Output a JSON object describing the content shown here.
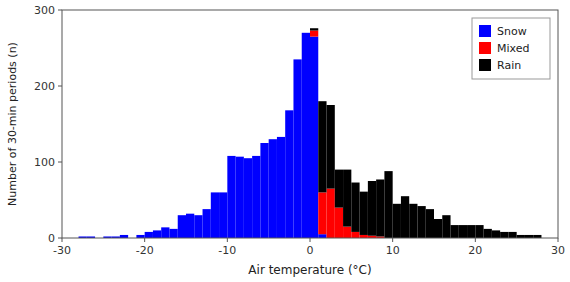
{
  "chart_data": {
    "type": "bar",
    "stacked": true,
    "xlabel": "Air temperature (°C)",
    "ylabel": "Number of 30-min periods (n)",
    "xlim": [
      -30,
      30
    ],
    "ylim": [
      0,
      300
    ],
    "xticks": [
      -30,
      -20,
      -10,
      0,
      10,
      20,
      30
    ],
    "yticks": [
      0,
      100,
      200,
      300
    ],
    "grid": false,
    "legend": "upper-right",
    "x": [
      -28,
      -27,
      -26,
      -25,
      -24,
      -23,
      -22,
      -21,
      -20,
      -19,
      -18,
      -17,
      -16,
      -15,
      -14,
      -13,
      -12,
      -11,
      -10,
      -9,
      -8,
      -7,
      -6,
      -5,
      -4,
      -3,
      -2,
      -1,
      0,
      1,
      2,
      3,
      4,
      5,
      6,
      7,
      8,
      9,
      10,
      11,
      12,
      13,
      14,
      15,
      16,
      17,
      18,
      19,
      20,
      21,
      22,
      23,
      24,
      25,
      26,
      27
    ],
    "series": [
      {
        "name": "Snow",
        "color": "#0000FF",
        "values": [
          2,
          2,
          0,
          2,
          2,
          4,
          0,
          4,
          8,
          10,
          14,
          12,
          30,
          32,
          30,
          38,
          60,
          60,
          108,
          107,
          105,
          108,
          125,
          130,
          133,
          168,
          235,
          270,
          265,
          5,
          0,
          0,
          0,
          0,
          0,
          0,
          0,
          0,
          0,
          0,
          0,
          0,
          0,
          0,
          0,
          0,
          0,
          0,
          0,
          0,
          0,
          0,
          0,
          0,
          0,
          0
        ]
      },
      {
        "name": "Mixed",
        "color": "#FF0000",
        "values": [
          0,
          0,
          0,
          0,
          0,
          0,
          0,
          0,
          0,
          0,
          0,
          0,
          0,
          0,
          0,
          0,
          0,
          0,
          0,
          0,
          0,
          0,
          0,
          0,
          0,
          0,
          0,
          0,
          8,
          55,
          65,
          40,
          15,
          8,
          4,
          3,
          2,
          0,
          0,
          0,
          0,
          0,
          0,
          0,
          0,
          0,
          0,
          0,
          0,
          0,
          0,
          0,
          0,
          0,
          0,
          0
        ]
      },
      {
        "name": "Rain",
        "color": "#000000",
        "values": [
          0,
          0,
          0,
          0,
          0,
          0,
          0,
          0,
          0,
          0,
          0,
          0,
          0,
          0,
          0,
          0,
          0,
          0,
          0,
          0,
          0,
          0,
          0,
          0,
          0,
          0,
          0,
          0,
          3,
          120,
          110,
          50,
          75,
          65,
          57,
          72,
          75,
          88,
          45,
          55,
          45,
          42,
          38,
          25,
          30,
          17,
          17,
          17,
          17,
          12,
          10,
          8,
          8,
          4,
          4,
          4
        ]
      }
    ]
  }
}
